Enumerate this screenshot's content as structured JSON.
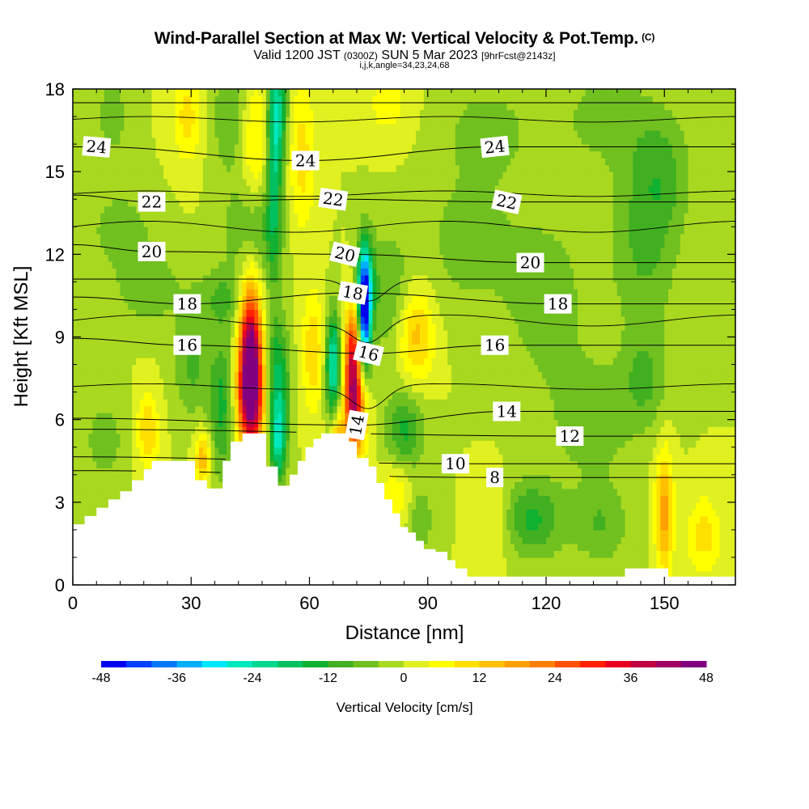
{
  "title": {
    "main": "Wind-Parallel Section at Max W: Vertical Velocity & Pot.Temp.",
    "copyright": "(C)",
    "valid_prefix": "Valid 1200 JST",
    "valid_utc": "(0300Z)",
    "valid_date": "SUN 5 Mar 2023",
    "forecast": "[9hrFcst@2143z]",
    "indices": "i,j,k,angle=34,23,24,68"
  },
  "colors": {
    "terrain": "#ffffff",
    "frame": "#000000",
    "contour": "#000000"
  },
  "chart_data": {
    "type": "heatmap",
    "xlabel": "Distance [nm]",
    "ylabel": "Height [Kft MSL]",
    "xlim": [
      0,
      168
    ],
    "ylim": [
      0,
      18
    ],
    "x_ticks": [
      0,
      30,
      60,
      90,
      120,
      150
    ],
    "y_ticks": [
      0,
      3,
      6,
      9,
      12,
      15,
      18
    ],
    "colorbar": {
      "label": "Vertical Velocity [cm/s]",
      "tick_labels": [
        "-48",
        "-36",
        "-24",
        "-12",
        "0",
        "12",
        "24",
        "36",
        "48"
      ],
      "levels": [
        -48,
        -44,
        -40,
        -36,
        -32,
        -28,
        -24,
        -20,
        -16,
        -12,
        -8,
        -4,
        0,
        4,
        8,
        12,
        16,
        20,
        24,
        28,
        32,
        36,
        40,
        44,
        48
      ],
      "colors": [
        "#0000ee",
        "#0040ff",
        "#0078ff",
        "#00b0ff",
        "#00e8ff",
        "#00e8c0",
        "#00d890",
        "#00c060",
        "#10b030",
        "#40b020",
        "#70c020",
        "#a8d820",
        "#e0f020",
        "#ffff00",
        "#ffe000",
        "#ffc000",
        "#ffa000",
        "#ff8000",
        "#ff5000",
        "#ff2000",
        "#e80020",
        "#c00040",
        "#a00060",
        "#800080"
      ]
    },
    "theta_contours": {
      "levels": [
        8,
        10,
        12,
        14,
        16,
        18,
        20,
        22,
        24
      ],
      "labels": [
        {
          "text": "24",
          "x": 6,
          "y": 15.9
        },
        {
          "text": "24",
          "x": 59,
          "y": 15.4
        },
        {
          "text": "24",
          "x": 107,
          "y": 15.9
        },
        {
          "text": "22",
          "x": 20,
          "y": 13.9
        },
        {
          "text": "22",
          "x": 66,
          "y": 14.0
        },
        {
          "text": "22",
          "x": 110,
          "y": 13.9
        },
        {
          "text": "20",
          "x": 20,
          "y": 12.1
        },
        {
          "text": "20",
          "x": 69,
          "y": 12.0
        },
        {
          "text": "20",
          "x": 116,
          "y": 11.7
        },
        {
          "text": "18",
          "x": 29,
          "y": 10.2
        },
        {
          "text": "18",
          "x": 71,
          "y": 10.6
        },
        {
          "text": "18",
          "x": 123,
          "y": 10.2
        },
        {
          "text": "16",
          "x": 29,
          "y": 8.7
        },
        {
          "text": "16",
          "x": 75,
          "y": 8.4
        },
        {
          "text": "16",
          "x": 107,
          "y": 8.7
        },
        {
          "text": "14",
          "x": 72,
          "y": 5.8
        },
        {
          "text": "14",
          "x": 110,
          "y": 6.3
        },
        {
          "text": "12",
          "x": 126,
          "y": 5.4
        },
        {
          "text": "10",
          "x": 97,
          "y": 4.4
        },
        {
          "text": "8",
          "x": 107,
          "y": 3.9
        }
      ]
    },
    "w_features": [
      {
        "x": 45,
        "y": 8.3,
        "sx": 2.0,
        "sy": 1.9,
        "w": 48
      },
      {
        "x": 45,
        "y": 6.5,
        "sx": 2.8,
        "sy": 1.3,
        "w": 22
      },
      {
        "x": 71,
        "y": 7.8,
        "sx": 1.6,
        "sy": 1.6,
        "w": 38
      },
      {
        "x": 72,
        "y": 6.0,
        "sx": 2.0,
        "sy": 1.0,
        "w": 18
      },
      {
        "x": 67,
        "y": 5.2,
        "sx": 1.3,
        "sy": 0.7,
        "w": 16
      },
      {
        "x": 74,
        "y": 9.8,
        "sx": 1.1,
        "sy": 1.4,
        "w": -40
      },
      {
        "x": 74,
        "y": 11.0,
        "sx": 1.6,
        "sy": 1.2,
        "w": -20
      },
      {
        "x": 66,
        "y": 8.0,
        "sx": 1.4,
        "sy": 1.3,
        "w": -26
      },
      {
        "x": 52,
        "y": 7.4,
        "sx": 2.0,
        "sy": 1.6,
        "w": -18
      },
      {
        "x": 52,
        "y": 5.2,
        "sx": 1.5,
        "sy": 1.0,
        "w": -20
      },
      {
        "x": 52,
        "y": 17.2,
        "sx": 1.7,
        "sy": 1.5,
        "w": -20
      },
      {
        "x": 51,
        "y": 14.5,
        "sx": 1.3,
        "sy": 2.5,
        "w": -14
      },
      {
        "x": 38,
        "y": 6.5,
        "sx": 2.5,
        "sy": 1.8,
        "w": -14
      },
      {
        "x": 38,
        "y": 10.4,
        "sx": 5.0,
        "sy": 0.8,
        "w": -8
      },
      {
        "x": 46,
        "y": 13.0,
        "sx": 5.0,
        "sy": 1.3,
        "w": -10
      },
      {
        "x": 19,
        "y": 10.8,
        "sx": 6.0,
        "sy": 1.0,
        "w": -7
      },
      {
        "x": 30,
        "y": 8.0,
        "sx": 3.0,
        "sy": 1.3,
        "w": -9
      },
      {
        "x": 40,
        "y": 17.0,
        "sx": 3.5,
        "sy": 1.4,
        "w": -8
      },
      {
        "x": 58,
        "y": 15.5,
        "sx": 2.5,
        "sy": 2.0,
        "w": 10
      },
      {
        "x": 46,
        "y": 16.0,
        "sx": 2.5,
        "sy": 1.8,
        "w": 10
      },
      {
        "x": 29,
        "y": 17.0,
        "sx": 2.5,
        "sy": 1.2,
        "w": 10
      },
      {
        "x": 61,
        "y": 8.5,
        "sx": 2.0,
        "sy": 1.5,
        "w": 12
      },
      {
        "x": 8,
        "y": 5.2,
        "sx": 4.0,
        "sy": 1.2,
        "w": -6
      },
      {
        "x": 19,
        "y": 5.6,
        "sx": 2.0,
        "sy": 1.0,
        "w": 12
      },
      {
        "x": 33,
        "y": 4.6,
        "sx": 1.4,
        "sy": 0.7,
        "w": 16
      },
      {
        "x": 80,
        "y": 10.6,
        "sx": 4.0,
        "sy": 1.6,
        "w": -8
      },
      {
        "x": 87,
        "y": 9.1,
        "sx": 3.2,
        "sy": 1.2,
        "w": 14
      },
      {
        "x": 84,
        "y": 5.6,
        "sx": 3.5,
        "sy": 1.0,
        "w": -13
      },
      {
        "x": 82,
        "y": 3.4,
        "sx": 3.0,
        "sy": 0.9,
        "w": 8
      },
      {
        "x": 88,
        "y": 2.4,
        "sx": 2.5,
        "sy": 1.0,
        "w": -7
      },
      {
        "x": 116,
        "y": 2.4,
        "sx": 6.0,
        "sy": 1.0,
        "w": -13
      },
      {
        "x": 107,
        "y": 2.3,
        "sx": 3.5,
        "sy": 1.1,
        "w": 7
      },
      {
        "x": 134,
        "y": 2.2,
        "sx": 5.0,
        "sy": 1.0,
        "w": -8
      },
      {
        "x": 150,
        "y": 2.6,
        "sx": 1.6,
        "sy": 1.6,
        "w": 18
      },
      {
        "x": 160,
        "y": 1.8,
        "sx": 3.0,
        "sy": 1.0,
        "w": 10
      },
      {
        "x": 132,
        "y": 6.0,
        "sx": 7.0,
        "sy": 1.5,
        "w": -7
      },
      {
        "x": 145,
        "y": 7.4,
        "sx": 4.0,
        "sy": 1.2,
        "w": -8
      },
      {
        "x": 120,
        "y": 10.4,
        "sx": 8.0,
        "sy": 2.5,
        "w": -6
      },
      {
        "x": 145,
        "y": 12.6,
        "sx": 6.0,
        "sy": 2.5,
        "w": -9
      },
      {
        "x": 150,
        "y": 15.0,
        "sx": 5.0,
        "sy": 1.5,
        "w": -7
      },
      {
        "x": 135,
        "y": 17.0,
        "sx": 8.0,
        "sy": 1.2,
        "w": -6
      },
      {
        "x": 105,
        "y": 16.5,
        "sx": 8.0,
        "sy": 1.2,
        "w": -6
      },
      {
        "x": 100,
        "y": 12.5,
        "sx": 8.0,
        "sy": 1.8,
        "w": -6
      },
      {
        "x": 12,
        "y": 13.0,
        "sx": 6.0,
        "sy": 1.0,
        "w": -6
      },
      {
        "x": 10,
        "y": 17.0,
        "sx": 3.0,
        "sy": 1.2,
        "w": -6
      },
      {
        "x": 80,
        "y": 17.5,
        "sx": 4.0,
        "sy": 1.0,
        "w": 6
      }
    ],
    "terrain_height": [
      [
        0,
        2.2
      ],
      [
        3,
        2.5
      ],
      [
        6,
        2.8
      ],
      [
        9,
        3.1
      ],
      [
        12,
        3.4
      ],
      [
        15,
        3.8
      ],
      [
        18,
        4.2
      ],
      [
        20,
        4.5
      ],
      [
        24,
        4.5
      ],
      [
        28,
        4.5
      ],
      [
        30,
        4.5
      ],
      [
        31,
        3.8
      ],
      [
        34,
        3.5
      ],
      [
        36,
        3.5
      ],
      [
        38,
        4.5
      ],
      [
        40,
        5.2
      ],
      [
        43,
        5.5
      ],
      [
        47,
        5.5
      ],
      [
        48,
        5.5
      ],
      [
        49,
        4.3
      ],
      [
        52,
        3.6
      ],
      [
        55,
        4.0
      ],
      [
        57,
        4.5
      ],
      [
        59,
        5.0
      ],
      [
        61,
        5.3
      ],
      [
        63,
        5.5
      ],
      [
        67,
        5.5
      ],
      [
        69,
        5.5
      ],
      [
        70,
        5.2
      ],
      [
        71,
        5.2
      ],
      [
        72,
        4.6
      ],
      [
        75,
        4.3
      ],
      [
        77,
        3.7
      ],
      [
        79,
        3.1
      ],
      [
        81,
        2.6
      ],
      [
        83,
        2.1
      ],
      [
        85,
        1.9
      ],
      [
        87,
        1.6
      ],
      [
        89,
        1.3
      ],
      [
        92,
        1.2
      ],
      [
        95,
        0.9
      ],
      [
        97,
        0.6
      ],
      [
        100,
        0.3
      ],
      [
        102,
        0.3
      ],
      [
        110,
        0.3
      ],
      [
        120,
        0.3
      ],
      [
        129,
        0.3
      ],
      [
        139,
        0.3
      ],
      [
        140,
        0.6
      ],
      [
        142,
        0.6
      ],
      [
        150,
        0.6
      ],
      [
        151,
        0.3
      ],
      [
        160,
        0.3
      ],
      [
        168,
        0.3
      ]
    ]
  }
}
